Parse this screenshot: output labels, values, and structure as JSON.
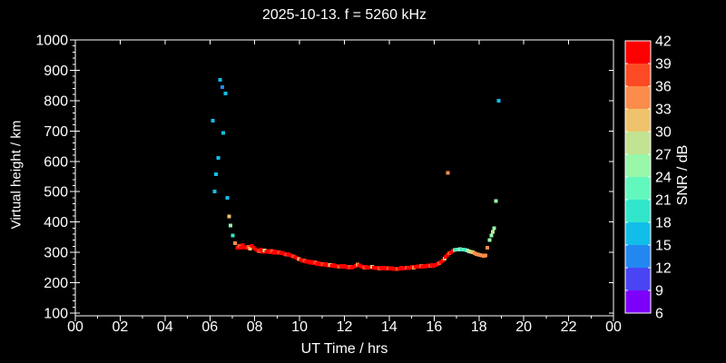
{
  "chart_data": {
    "type": "scatter",
    "title": "2025-10-13. f = 5260 kHz",
    "xlabel": "UT Time / hrs",
    "ylabel": "Virtual height / km",
    "xlim": [
      0,
      24
    ],
    "ylim": [
      100,
      1000
    ],
    "grid": false,
    "x_tick_hours": [
      0,
      2,
      4,
      6,
      8,
      10,
      12,
      14,
      16,
      18,
      20,
      22,
      24
    ],
    "x_tick_labels": [
      "00",
      "02",
      "04",
      "06",
      "08",
      "10",
      "12",
      "14",
      "16",
      "18",
      "20",
      "22",
      "00"
    ],
    "x_minor_tick_step_hours": 1,
    "y_tick_values": [
      100,
      200,
      300,
      400,
      500,
      600,
      700,
      800,
      900,
      1000
    ],
    "y_minor_tick_step_km": 20,
    "style": {
      "background": "#000000",
      "frame_color": "#ffffff",
      "text_color": "#ffffff"
    },
    "colorbar": {
      "label": "SNR / dB",
      "min": 6,
      "max": 42,
      "step": 3,
      "tick_labels_top_to_bottom": [
        42,
        39,
        36,
        33,
        30,
        27,
        24,
        21,
        18,
        15,
        12,
        9,
        6
      ],
      "segment_colors_low_to_high": [
        "#7D00FA",
        "#4945F3",
        "#2387F2",
        "#11BEE9",
        "#32E6CB",
        "#62F7BD",
        "#99F7AA",
        "#C2E392",
        "#EFC36B",
        "#FB8C4B",
        "#FC4A24",
        "#FE0000"
      ]
    },
    "points_format": [
      "ut_hour",
      "virtual_height_km",
      "snr_db"
    ],
    "points": [
      [
        6.13,
        734,
        16
      ],
      [
        6.21,
        500,
        16
      ],
      [
        6.28,
        557,
        16
      ],
      [
        6.37,
        611,
        16
      ],
      [
        6.45,
        868,
        16
      ],
      [
        6.56,
        845,
        13
      ],
      [
        6.6,
        693,
        16
      ],
      [
        6.7,
        824,
        16
      ],
      [
        6.77,
        480,
        16
      ],
      [
        6.86,
        418,
        31
      ],
      [
        6.93,
        388,
        25
      ],
      [
        7.03,
        355,
        19
      ],
      [
        7.13,
        330,
        34
      ],
      [
        7.22,
        316,
        40
      ],
      [
        7.3,
        321,
        37
      ],
      [
        7.38,
        315,
        40
      ],
      [
        7.47,
        324,
        40
      ],
      [
        7.55,
        317,
        40
      ],
      [
        7.63,
        315,
        40
      ],
      [
        7.71,
        319,
        37
      ],
      [
        7.79,
        313,
        31
      ],
      [
        7.87,
        321,
        40
      ],
      [
        7.95,
        316,
        40
      ],
      [
        8.03,
        311,
        40
      ],
      [
        8.11,
        307,
        40
      ],
      [
        8.19,
        304,
        37
      ],
      [
        8.28,
        309,
        40
      ],
      [
        8.36,
        302,
        40
      ],
      [
        8.44,
        306,
        28
      ],
      [
        8.52,
        302,
        40
      ],
      [
        8.6,
        305,
        40
      ],
      [
        8.68,
        301,
        40
      ],
      [
        8.76,
        305,
        37
      ],
      [
        8.84,
        299,
        40
      ],
      [
        8.92,
        303,
        40
      ],
      [
        9.0,
        299,
        40
      ],
      [
        9.09,
        301,
        37
      ],
      [
        9.17,
        297,
        40
      ],
      [
        9.25,
        299,
        40
      ],
      [
        9.33,
        295,
        40
      ],
      [
        9.41,
        293,
        37
      ],
      [
        9.49,
        295,
        40
      ],
      [
        9.57,
        291,
        40
      ],
      [
        9.65,
        289,
        40
      ],
      [
        9.73,
        287,
        37
      ],
      [
        9.81,
        284,
        40
      ],
      [
        9.9,
        281,
        40
      ],
      [
        9.98,
        278,
        31
      ],
      [
        10.06,
        275,
        40
      ],
      [
        10.14,
        272,
        40
      ],
      [
        10.22,
        274,
        37
      ],
      [
        10.3,
        269,
        40
      ],
      [
        10.38,
        271,
        40
      ],
      [
        10.46,
        266,
        40
      ],
      [
        10.55,
        269,
        40
      ],
      [
        10.63,
        264,
        40
      ],
      [
        10.71,
        267,
        37
      ],
      [
        10.79,
        262,
        40
      ],
      [
        10.87,
        264,
        40
      ],
      [
        10.95,
        260,
        40
      ],
      [
        11.03,
        262,
        37
      ],
      [
        11.11,
        258,
        40
      ],
      [
        11.2,
        261,
        40
      ],
      [
        11.28,
        257,
        40
      ],
      [
        11.36,
        259,
        31
      ],
      [
        11.44,
        256,
        40
      ],
      [
        11.52,
        258,
        40
      ],
      [
        11.6,
        254,
        40
      ],
      [
        11.68,
        256,
        40
      ],
      [
        11.76,
        253,
        37
      ],
      [
        11.85,
        255,
        40
      ],
      [
        11.93,
        252,
        40
      ],
      [
        12.01,
        255,
        40
      ],
      [
        12.09,
        252,
        40
      ],
      [
        12.17,
        250,
        40
      ],
      [
        12.25,
        252,
        37
      ],
      [
        12.33,
        250,
        40
      ],
      [
        12.41,
        253,
        40
      ],
      [
        12.5,
        256,
        40
      ],
      [
        12.58,
        260,
        34
      ],
      [
        12.66,
        257,
        40
      ],
      [
        12.74,
        254,
        40
      ],
      [
        12.82,
        252,
        40
      ],
      [
        12.9,
        250,
        37
      ],
      [
        12.98,
        252,
        40
      ],
      [
        13.06,
        249,
        40
      ],
      [
        13.15,
        251,
        40
      ],
      [
        13.23,
        253,
        31
      ],
      [
        13.31,
        250,
        40
      ],
      [
        13.39,
        248,
        40
      ],
      [
        13.47,
        250,
        40
      ],
      [
        13.55,
        247,
        37
      ],
      [
        13.63,
        249,
        40
      ],
      [
        13.71,
        247,
        40
      ],
      [
        13.8,
        249,
        40
      ],
      [
        13.88,
        246,
        40
      ],
      [
        13.96,
        248,
        37
      ],
      [
        14.04,
        246,
        40
      ],
      [
        14.12,
        248,
        40
      ],
      [
        14.2,
        245,
        40
      ],
      [
        14.28,
        247,
        40
      ],
      [
        14.36,
        245,
        37
      ],
      [
        14.45,
        247,
        40
      ],
      [
        14.53,
        249,
        40
      ],
      [
        14.61,
        246,
        40
      ],
      [
        14.69,
        248,
        40
      ],
      [
        14.77,
        250,
        37
      ],
      [
        14.85,
        248,
        40
      ],
      [
        14.93,
        250,
        40
      ],
      [
        15.01,
        252,
        40
      ],
      [
        15.1,
        250,
        34
      ],
      [
        15.18,
        252,
        40
      ],
      [
        15.26,
        254,
        40
      ],
      [
        15.34,
        252,
        40
      ],
      [
        15.42,
        255,
        37
      ],
      [
        15.5,
        253,
        40
      ],
      [
        15.58,
        256,
        40
      ],
      [
        15.66,
        254,
        40
      ],
      [
        15.75,
        257,
        40
      ],
      [
        15.83,
        255,
        37
      ],
      [
        15.91,
        258,
        40
      ],
      [
        15.99,
        256,
        40
      ],
      [
        16.07,
        259,
        40
      ],
      [
        16.15,
        262,
        40
      ],
      [
        16.23,
        265,
        37
      ],
      [
        16.31,
        269,
        40
      ],
      [
        16.4,
        274,
        40
      ],
      [
        16.48,
        280,
        31
      ],
      [
        16.52,
        286,
        40
      ],
      [
        16.6,
        292,
        40
      ],
      [
        16.68,
        297,
        37
      ],
      [
        16.76,
        301,
        40
      ],
      [
        16.84,
        305,
        40
      ],
      [
        16.62,
        562,
        34
      ],
      [
        16.92,
        308,
        22
      ],
      [
        17.0,
        310,
        19
      ],
      [
        17.08,
        310,
        22
      ],
      [
        17.16,
        311,
        25
      ],
      [
        17.24,
        310,
        19
      ],
      [
        17.32,
        309,
        22
      ],
      [
        17.4,
        308,
        19
      ],
      [
        17.48,
        306,
        25
      ],
      [
        17.57,
        304,
        28
      ],
      [
        17.65,
        302,
        28
      ],
      [
        17.73,
        300,
        31
      ],
      [
        17.81,
        297,
        34
      ],
      [
        17.89,
        295,
        34
      ],
      [
        17.97,
        293,
        34
      ],
      [
        18.05,
        291,
        34
      ],
      [
        18.13,
        290,
        34
      ],
      [
        18.21,
        289,
        34
      ],
      [
        18.29,
        290,
        34
      ],
      [
        18.37,
        316,
        34
      ],
      [
        18.47,
        340,
        25
      ],
      [
        18.55,
        355,
        25
      ],
      [
        18.62,
        367,
        28
      ],
      [
        18.68,
        379,
        25
      ],
      [
        18.76,
        470,
        25
      ],
      [
        18.88,
        800,
        16
      ]
    ]
  }
}
